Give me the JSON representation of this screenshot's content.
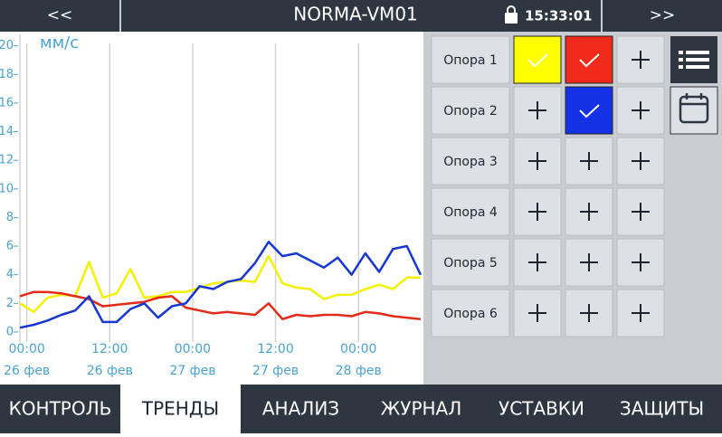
{
  "header": {
    "prev": "<<",
    "title": "NORMA-VM01",
    "time": "15:33:01",
    "next": ">>"
  },
  "chart_data": {
    "type": "line",
    "ylabel": "мм/с",
    "x": [
      -1,
      1,
      3,
      5,
      7,
      9,
      11,
      13,
      15,
      17,
      19,
      21,
      23,
      25,
      27,
      29,
      31,
      33,
      35,
      37,
      39,
      41,
      43,
      45,
      47,
      49,
      51,
      53,
      55,
      57
    ],
    "series": [
      {
        "color": "#f4f000",
        "values": [
          2.0,
          1.4,
          2.4,
          2.6,
          2.5,
          4.9,
          2.4,
          2.7,
          4.4,
          2.4,
          2.5,
          2.8,
          2.8,
          3.1,
          3.4,
          3.5,
          3.6,
          3.5,
          5.3,
          3.4,
          3.1,
          3.0,
          2.3,
          2.6,
          2.6,
          3.0,
          3.3,
          3.0,
          3.8,
          3.8
        ]
      },
      {
        "color": "#e32b17",
        "values": [
          2.5,
          2.8,
          2.8,
          2.7,
          2.5,
          2.3,
          1.8,
          1.9,
          2.0,
          2.1,
          2.4,
          2.5,
          1.7,
          1.5,
          1.3,
          1.4,
          1.3,
          1.2,
          2.0,
          0.9,
          1.2,
          1.1,
          1.2,
          1.2,
          1.1,
          1.4,
          1.3,
          1.1,
          1.0,
          0.9
        ]
      },
      {
        "color": "#1637d0",
        "values": [
          0.3,
          0.5,
          0.8,
          1.2,
          1.5,
          2.5,
          0.7,
          0.7,
          1.6,
          2.0,
          1.0,
          1.8,
          2.0,
          3.2,
          3.0,
          3.5,
          3.7,
          4.8,
          6.3,
          5.3,
          5.5,
          5.0,
          4.5,
          5.2,
          4.0,
          5.5,
          4.2,
          5.8,
          6.0,
          4.0
        ]
      }
    ],
    "xlim": [
      -1,
      57.4
    ],
    "xticks": [
      {
        "value": 0,
        "label": "00:00"
      },
      {
        "value": 12,
        "label": "12:00"
      },
      {
        "value": 24,
        "label": "00:00"
      },
      {
        "value": 36,
        "label": "12:00"
      },
      {
        "value": 48,
        "label": "00:00"
      }
    ],
    "xtick_dates": [
      "26 фев",
      "26 фев",
      "27 фев",
      "27 фев",
      "28 фев"
    ],
    "ylim": [
      -0.7,
      20.8
    ],
    "yticks": [
      0,
      2,
      4,
      6,
      8,
      10,
      12,
      14,
      16,
      18,
      20
    ],
    "grid": "x"
  },
  "panel": {
    "rows": [
      {
        "label": "Опора 1",
        "cells": [
          {
            "color": "#ffff00",
            "checked": true
          },
          {
            "color": "#f02a1a",
            "checked": true
          },
          {
            "checked": false
          }
        ]
      },
      {
        "label": "Опора 2",
        "cells": [
          {
            "checked": false
          },
          {
            "color": "#1431e6",
            "checked": true
          },
          {
            "checked": false
          }
        ]
      },
      {
        "label": "Опора 3",
        "cells": [
          {
            "checked": false
          },
          {
            "checked": false
          },
          {
            "checked": false
          }
        ]
      },
      {
        "label": "Опора 4",
        "cells": [
          {
            "checked": false
          },
          {
            "checked": false
          },
          {
            "checked": false
          }
        ]
      },
      {
        "label": "Опора 5",
        "cells": [
          {
            "checked": false
          },
          {
            "checked": false
          },
          {
            "checked": false
          }
        ]
      },
      {
        "label": "Опора 6",
        "cells": [
          {
            "checked": false
          },
          {
            "checked": false
          },
          {
            "checked": false
          }
        ]
      }
    ]
  },
  "tabs": {
    "items": [
      "КОНТРОЛЬ",
      "ТРЕНДЫ",
      "АНАЛИЗ",
      "ЖУРНАЛ",
      "УСТАВКИ",
      "ЗАЩИТЫ"
    ],
    "active": 1
  }
}
